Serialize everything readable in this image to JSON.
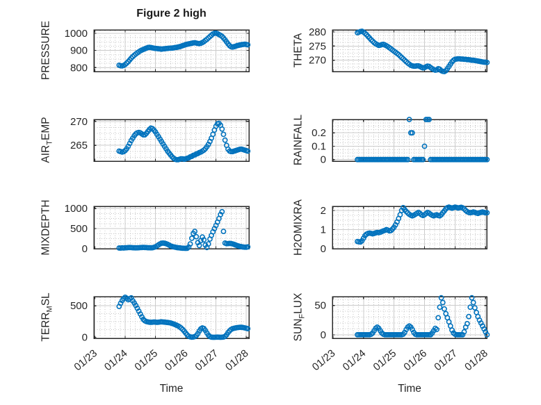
{
  "title": "Figure 2 high",
  "xlabel": "Time",
  "x_axis": {
    "tick_labels": [
      "01/23",
      "01/24",
      "01/25",
      "01/26",
      "01/27",
      "01/28"
    ],
    "tick_days": [
      0,
      1,
      2,
      3,
      4,
      5
    ]
  },
  "time_base": {
    "t_start_days": 0.8,
    "t_step_days": 0.05,
    "t_unit": "days after 01/23"
  },
  "style": {
    "marker_color": "#0072BD",
    "axes_color": "#282828",
    "grid_color": "#cbcbcb",
    "minor_grid_color": "#c4c4c4",
    "text_color": "#262626",
    "background": "#ffffff"
  },
  "chart_data": [
    {
      "id": "pressure",
      "type": "scatter",
      "marker": "o",
      "ylabel": "PRESSURE",
      "ytick_labels": [
        "800",
        "900",
        "1000"
      ],
      "yticks": [
        800,
        900,
        1000
      ],
      "ylim": [
        777,
        1020
      ],
      "y_minor_div": 4,
      "values": [
        814,
        811,
        810,
        813,
        818,
        826,
        835,
        845,
        855,
        864,
        872,
        879,
        886,
        892,
        898,
        902,
        906,
        910,
        913,
        917,
        918,
        917,
        915,
        913,
        912,
        911,
        910,
        909,
        908,
        909,
        910,
        911,
        912,
        913,
        913,
        914,
        915,
        917,
        918,
        920,
        922,
        925,
        928,
        931,
        934,
        936,
        938,
        940,
        942,
        944,
        945,
        943,
        941,
        940,
        942,
        946,
        951,
        958,
        965,
        973,
        981,
        989,
        996,
        1000,
        1001,
        998,
        993,
        988,
        982,
        973,
        962,
        950,
        938,
        928,
        922,
        920,
        922,
        925,
        928,
        930,
        932,
        934,
        935,
        936,
        935,
        933
      ]
    },
    {
      "id": "theta",
      "type": "scatter",
      "marker": "o",
      "ylabel": "THETA",
      "ytick_labels": [
        "270",
        "275",
        "280"
      ],
      "yticks": [
        270,
        275,
        280
      ],
      "ylim": [
        266.0,
        280.7
      ],
      "y_minor_div": 4,
      "values": [
        279.7,
        279.9,
        280.1,
        280.2,
        279.9,
        279.5,
        279.0,
        278.4,
        277.8,
        277.2,
        276.7,
        276.2,
        275.8,
        275.5,
        275.2,
        275.3,
        275.5,
        275.6,
        275.4,
        275.1,
        274.8,
        274.4,
        274.0,
        273.6,
        273.2,
        272.8,
        272.4,
        272.0,
        271.5,
        271.0,
        270.5,
        270.0,
        269.5,
        269.0,
        268.6,
        268.2,
        268.0,
        267.9,
        267.9,
        268.0,
        268.0,
        267.8,
        267.5,
        267.3,
        267.4,
        267.7,
        267.9,
        267.8,
        267.4,
        267.0,
        266.7,
        266.5,
        266.6,
        267.0,
        266.8,
        266.3,
        266.1,
        266.0,
        266.3,
        267.0,
        267.8,
        268.6,
        269.4,
        270.0,
        270.3,
        270.4,
        270.5,
        270.5,
        270.4,
        270.4,
        270.3,
        270.3,
        270.2,
        270.2,
        270.1,
        270.0,
        270.0,
        269.9,
        269.8,
        269.7,
        269.6,
        269.5,
        269.4,
        269.3,
        269.3,
        269.2
      ]
    },
    {
      "id": "air-temp",
      "type": "scatter",
      "marker": "o",
      "ylabel": "AIR_TEMP",
      "ytick_labels": [
        "265",
        "270"
      ],
      "yticks": [
        265,
        270
      ],
      "ylim": [
        261.7,
        270.4
      ],
      "y_minor_div": 4,
      "values": [
        263.8,
        263.7,
        263.6,
        263.7,
        263.9,
        264.3,
        264.8,
        265.4,
        266.0,
        266.5,
        267.0,
        267.4,
        267.6,
        267.7,
        267.6,
        267.4,
        267.2,
        267.2,
        267.5,
        267.9,
        268.3,
        268.6,
        268.5,
        268.2,
        267.8,
        267.3,
        266.8,
        266.3,
        265.8,
        265.3,
        264.8,
        264.3,
        263.8,
        263.4,
        263.0,
        262.6,
        262.3,
        262.1,
        262.0,
        262.0,
        262.1,
        262.2,
        262.2,
        262.1,
        262.2,
        262.3,
        262.4,
        262.6,
        262.7,
        262.9,
        263.0,
        263.2,
        263.3,
        263.5,
        263.6,
        263.8,
        264.0,
        264.3,
        264.7,
        265.2,
        265.8,
        266.5,
        267.3,
        268.2,
        269.0,
        269.5,
        269.6,
        269.2,
        268.4,
        267.3,
        266.1,
        265.0,
        264.2,
        263.8,
        263.7,
        263.7,
        263.8,
        263.9,
        264.0,
        264.1,
        264.2,
        264.2,
        264.1,
        264.0,
        263.9,
        263.8
      ]
    },
    {
      "id": "rainfall",
      "type": "scatter",
      "marker": "o",
      "ylabel": "RAINFALL",
      "ytick_labels": [
        "0",
        "0.1",
        "0.2"
      ],
      "yticks": [
        0,
        0.1,
        0.2
      ],
      "ylim": [
        -0.012,
        0.3
      ],
      "y_minor_div": 4,
      "values": [
        0,
        0,
        0,
        0,
        0,
        0,
        0,
        0,
        0,
        0,
        0,
        0,
        0,
        0,
        0,
        0,
        0,
        0,
        0,
        0,
        0,
        0,
        0,
        0,
        0,
        0,
        0,
        0,
        0,
        0,
        0,
        0,
        0,
        0,
        0.3,
        0.2,
        0.2,
        0,
        0,
        0,
        0,
        0,
        0,
        0,
        0.1,
        0.3,
        0.3,
        0.3,
        0,
        0,
        0,
        0,
        0,
        0,
        0,
        0,
        0,
        0,
        0,
        0,
        0,
        0,
        0,
        0,
        0,
        0,
        0,
        0,
        0,
        0,
        0,
        0,
        0,
        0,
        0,
        0,
        0,
        0,
        0,
        0,
        0,
        0,
        0,
        0,
        0,
        0
      ]
    },
    {
      "id": "mixdepth",
      "type": "scatter",
      "marker": "o",
      "ylabel": "MIXDEPTH",
      "ytick_labels": [
        "0",
        "500",
        "1000"
      ],
      "yticks": [
        0,
        500,
        1000
      ],
      "ylim": [
        0,
        1055
      ],
      "y_minor_div": 4,
      "values": [
        18,
        15,
        20,
        18,
        22,
        25,
        28,
        30,
        28,
        25,
        22,
        20,
        22,
        25,
        28,
        30,
        32,
        30,
        28,
        25,
        24,
        22,
        25,
        35,
        45,
        70,
        95,
        120,
        135,
        140,
        135,
        125,
        110,
        90,
        70,
        55,
        45,
        38,
        30,
        25,
        20,
        15,
        12,
        10,
        8,
        10,
        40,
        120,
        260,
        380,
        430,
        300,
        150,
        80,
        200,
        290,
        220,
        90,
        30,
        120,
        240,
        330,
        420,
        500,
        580,
        660,
        750,
        850,
        920,
        430,
        140,
        125,
        128,
        132,
        128,
        120,
        108,
        92,
        78,
        65,
        55,
        48,
        42,
        38,
        36,
        45
      ]
    },
    {
      "id": "h2omixra",
      "type": "scatter",
      "marker": "o",
      "ylabel": "H2OMIXRA",
      "ytick_labels": [
        "0",
        "1",
        "2"
      ],
      "yticks": [
        0,
        1,
        2
      ],
      "ylim": [
        0,
        2.22
      ],
      "y_minor_div": 4,
      "values": [
        0.38,
        0.36,
        0.35,
        0.42,
        0.55,
        0.68,
        0.76,
        0.8,
        0.82,
        0.8,
        0.78,
        0.8,
        0.83,
        0.85,
        0.84,
        0.86,
        0.9,
        0.93,
        0.96,
        1.0,
        0.97,
        0.93,
        0.95,
        1.03,
        1.12,
        1.25,
        1.4,
        1.58,
        1.78,
        2.0,
        2.15,
        2.05,
        1.95,
        1.87,
        1.8,
        1.75,
        1.72,
        1.75,
        1.8,
        1.85,
        1.9,
        1.85,
        1.78,
        1.74,
        1.78,
        1.84,
        1.9,
        1.86,
        1.8,
        1.75,
        1.72,
        1.75,
        1.78,
        1.74,
        1.72,
        1.78,
        1.88,
        1.98,
        2.08,
        2.15,
        2.18,
        2.15,
        2.12,
        2.15,
        2.18,
        2.16,
        2.13,
        2.15,
        2.17,
        2.14,
        2.08,
        2.0,
        1.94,
        1.9,
        1.88,
        1.9,
        1.92,
        1.9,
        1.87,
        1.85,
        1.88,
        1.9,
        1.92,
        1.9,
        1.88,
        1.88
      ]
    },
    {
      "id": "terr-msl",
      "type": "scatter",
      "marker": "o",
      "ylabel": "TERR_MSL",
      "ytick_labels": [
        "0",
        "500"
      ],
      "yticks": [
        0,
        500
      ],
      "ylim": [
        -15,
        645
      ],
      "y_minor_div": 4,
      "values": [
        490,
        540,
        585,
        615,
        635,
        620,
        595,
        610,
        625,
        580,
        545,
        505,
        460,
        415,
        370,
        325,
        285,
        262,
        250,
        245,
        240,
        238,
        240,
        243,
        241,
        238,
        240,
        244,
        246,
        244,
        241,
        238,
        236,
        232,
        228,
        220,
        212,
        202,
        192,
        180,
        165,
        148,
        125,
        98,
        68,
        40,
        18,
        8,
        4,
        6,
        12,
        28,
        60,
        100,
        135,
        150,
        140,
        110,
        70,
        35,
        12,
        4,
        2,
        2,
        3,
        4,
        3,
        2,
        3,
        6,
        15,
        40,
        75,
        105,
        125,
        138,
        145,
        150,
        154,
        157,
        160,
        159,
        155,
        150,
        144,
        138
      ]
    },
    {
      "id": "sun-flux",
      "type": "scatter",
      "marker": "o",
      "ylabel": "SUN_FLUX",
      "ytick_labels": [
        "0",
        "50"
      ],
      "yticks": [
        0,
        50
      ],
      "ylim": [
        -6,
        65
      ],
      "y_minor_div": 5,
      "values": [
        0,
        0,
        0,
        0,
        0,
        0,
        0,
        0,
        0,
        1,
        3,
        7,
        11,
        13,
        11,
        7,
        3,
        1,
        0,
        0,
        0,
        0,
        0,
        0,
        0,
        0,
        0,
        0,
        0,
        0,
        1,
        4,
        9,
        13,
        15,
        13,
        9,
        4,
        1,
        0,
        0,
        0,
        0,
        0,
        0,
        0,
        0,
        0,
        0,
        3,
        7,
        11,
        9,
        29,
        47,
        63,
        55,
        44,
        36,
        29,
        22,
        15,
        8,
        3,
        1,
        0,
        0,
        0,
        0,
        0,
        5,
        13,
        19,
        31,
        47,
        63,
        55,
        46,
        38,
        31,
        25,
        20,
        15,
        10,
        5,
        0
      ]
    }
  ]
}
